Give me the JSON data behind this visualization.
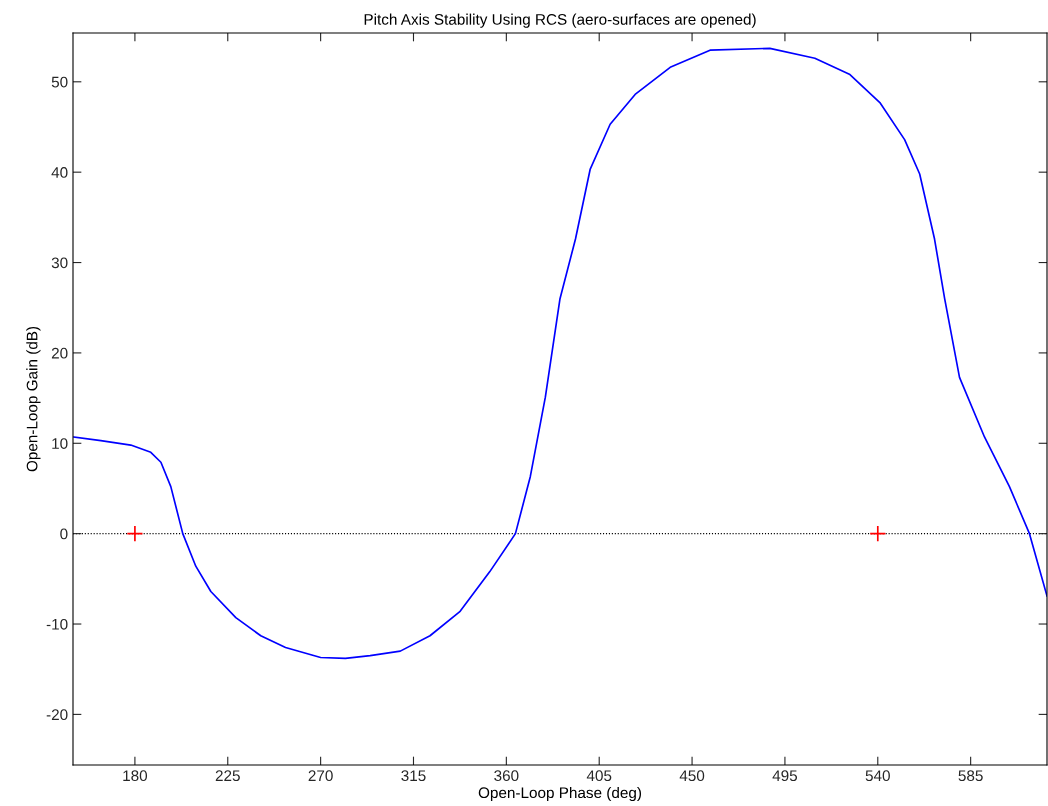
{
  "chart_data": {
    "type": "line",
    "title": "Pitch Axis Stability Using RCS (aero-surfaces are opened)",
    "xlabel": "Open-Loop Phase (deg)",
    "ylabel": "Open-Loop Gain (dB)",
    "xlim": [
      150,
      622
    ],
    "ylim": [
      -25.6,
      55.4
    ],
    "xticks": [
      180,
      225,
      270,
      315,
      360,
      405,
      450,
      495,
      540,
      585
    ],
    "yticks": [
      -20,
      -10,
      0,
      10,
      20,
      30,
      40,
      50
    ],
    "grid": false,
    "legend": false,
    "series": [
      {
        "type": "line",
        "color": "#0000ff",
        "marker": "none",
        "x": [
          150.5,
          163.5,
          178,
          187.7,
          192.6,
          197.4,
          203.2,
          209.5,
          216.8,
          228.9,
          241,
          253,
          270,
          282,
          294,
          308.6,
          323,
          337.6,
          352,
          364.4,
          371.6,
          378.9,
          386,
          393.5,
          400.6,
          410.3,
          422.4,
          439.4,
          458.7,
          487.7,
          509.5,
          526.5,
          541,
          553,
          560.3,
          567.5,
          572.4,
          579.6,
          591.7,
          603.8,
          613.5,
          622
        ],
        "values": [
          10.7,
          10.3,
          9.8,
          9.0,
          7.9,
          5.2,
          0,
          -3.6,
          -6.4,
          -9.3,
          -11.3,
          -12.6,
          -13.7,
          -13.8,
          -13.5,
          -13.0,
          -11.3,
          -8.6,
          -4.2,
          0,
          6.3,
          15.1,
          26.0,
          32.6,
          40.3,
          45.3,
          48.6,
          51.6,
          53.5,
          53.7,
          52.6,
          50.8,
          47.7,
          43.6,
          39.8,
          32.6,
          26.0,
          17.3,
          10.7,
          5.2,
          0,
          -6.9
        ]
      },
      {
        "type": "scatter",
        "color": "#ff0000",
        "marker": "cross",
        "x": [
          180,
          540
        ],
        "values": [
          0,
          0
        ]
      }
    ],
    "ref_lines": [
      {
        "axis": "y",
        "value": 0,
        "color": "#000000",
        "line_style": "dotted"
      }
    ]
  }
}
